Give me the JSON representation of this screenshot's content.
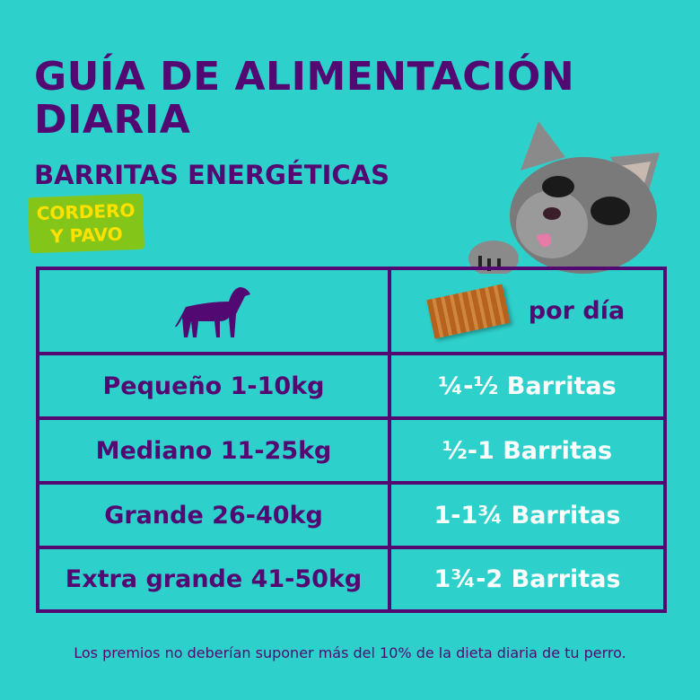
{
  "title": "GUÍA DE ALIMENTACIÓN DIARIA",
  "subtitle": "BARRITAS ENERGÉTICAS",
  "badge": {
    "line1": "CORDERO",
    "line2": "Y PAVO"
  },
  "table": {
    "header": {
      "dog_icon": "dog-silhouette-icon",
      "bar_icon": "treat-bar-icon",
      "per_day": "por día"
    },
    "rows": [
      {
        "size": "Pequeño 1-10kg",
        "amount": "¼-½ Barritas"
      },
      {
        "size": "Mediano 11-25kg",
        "amount": "½-1 Barritas"
      },
      {
        "size": "Grande 26-40kg",
        "amount": "1-1¾ Barritas"
      },
      {
        "size": "Extra grande 41-50kg",
        "amount": "1¾-2 Barritas"
      }
    ]
  },
  "footer": "Los premios no deberían suponer más del 10% de la dieta diaria de tu perro.",
  "colors": {
    "background": "#2ed0cb",
    "purple": "#520a72",
    "badge_green": "#84c51a",
    "badge_yellow": "#ffe100"
  }
}
